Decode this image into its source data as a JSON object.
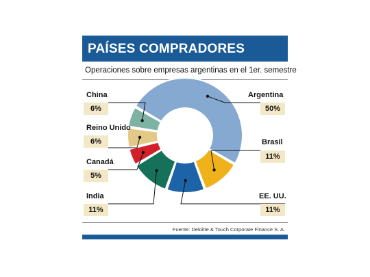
{
  "header": {
    "title": "PAÍSES COMPRADORES"
  },
  "subtitle": "Operaciones sobre empresas argentinas en el 1er. semestre",
  "source": "Fuente: Deloitte & Touch Corporate Finance S. A.",
  "colors": {
    "header": "#1a5a96",
    "label_box": "#f2e8c6"
  },
  "chart_data": {
    "type": "pie",
    "title": "PAÍSES COMPRADORES",
    "subtitle": "Operaciones sobre empresas argentinas en el 1er. semestre",
    "unit": "%",
    "series": [
      {
        "name": "Argentina",
        "value": 50,
        "label": "50%",
        "color": "#86a9d1"
      },
      {
        "name": "Brasil",
        "value": 11,
        "label": "11%",
        "color": "#f0b21a"
      },
      {
        "name": "EE. UU.",
        "value": 11,
        "label": "11%",
        "color": "#1c63a8"
      },
      {
        "name": "India",
        "value": 11,
        "label": "11%",
        "color": "#15715a"
      },
      {
        "name": "Canadá",
        "value": 5,
        "label": "5%",
        "color": "#d31f2a"
      },
      {
        "name": "Reino Unido",
        "value": 6,
        "label": "6%",
        "color": "#e3c987"
      },
      {
        "name": "China",
        "value": 6,
        "label": "6%",
        "color": "#7db3a5"
      }
    ],
    "legend": "callouts"
  }
}
